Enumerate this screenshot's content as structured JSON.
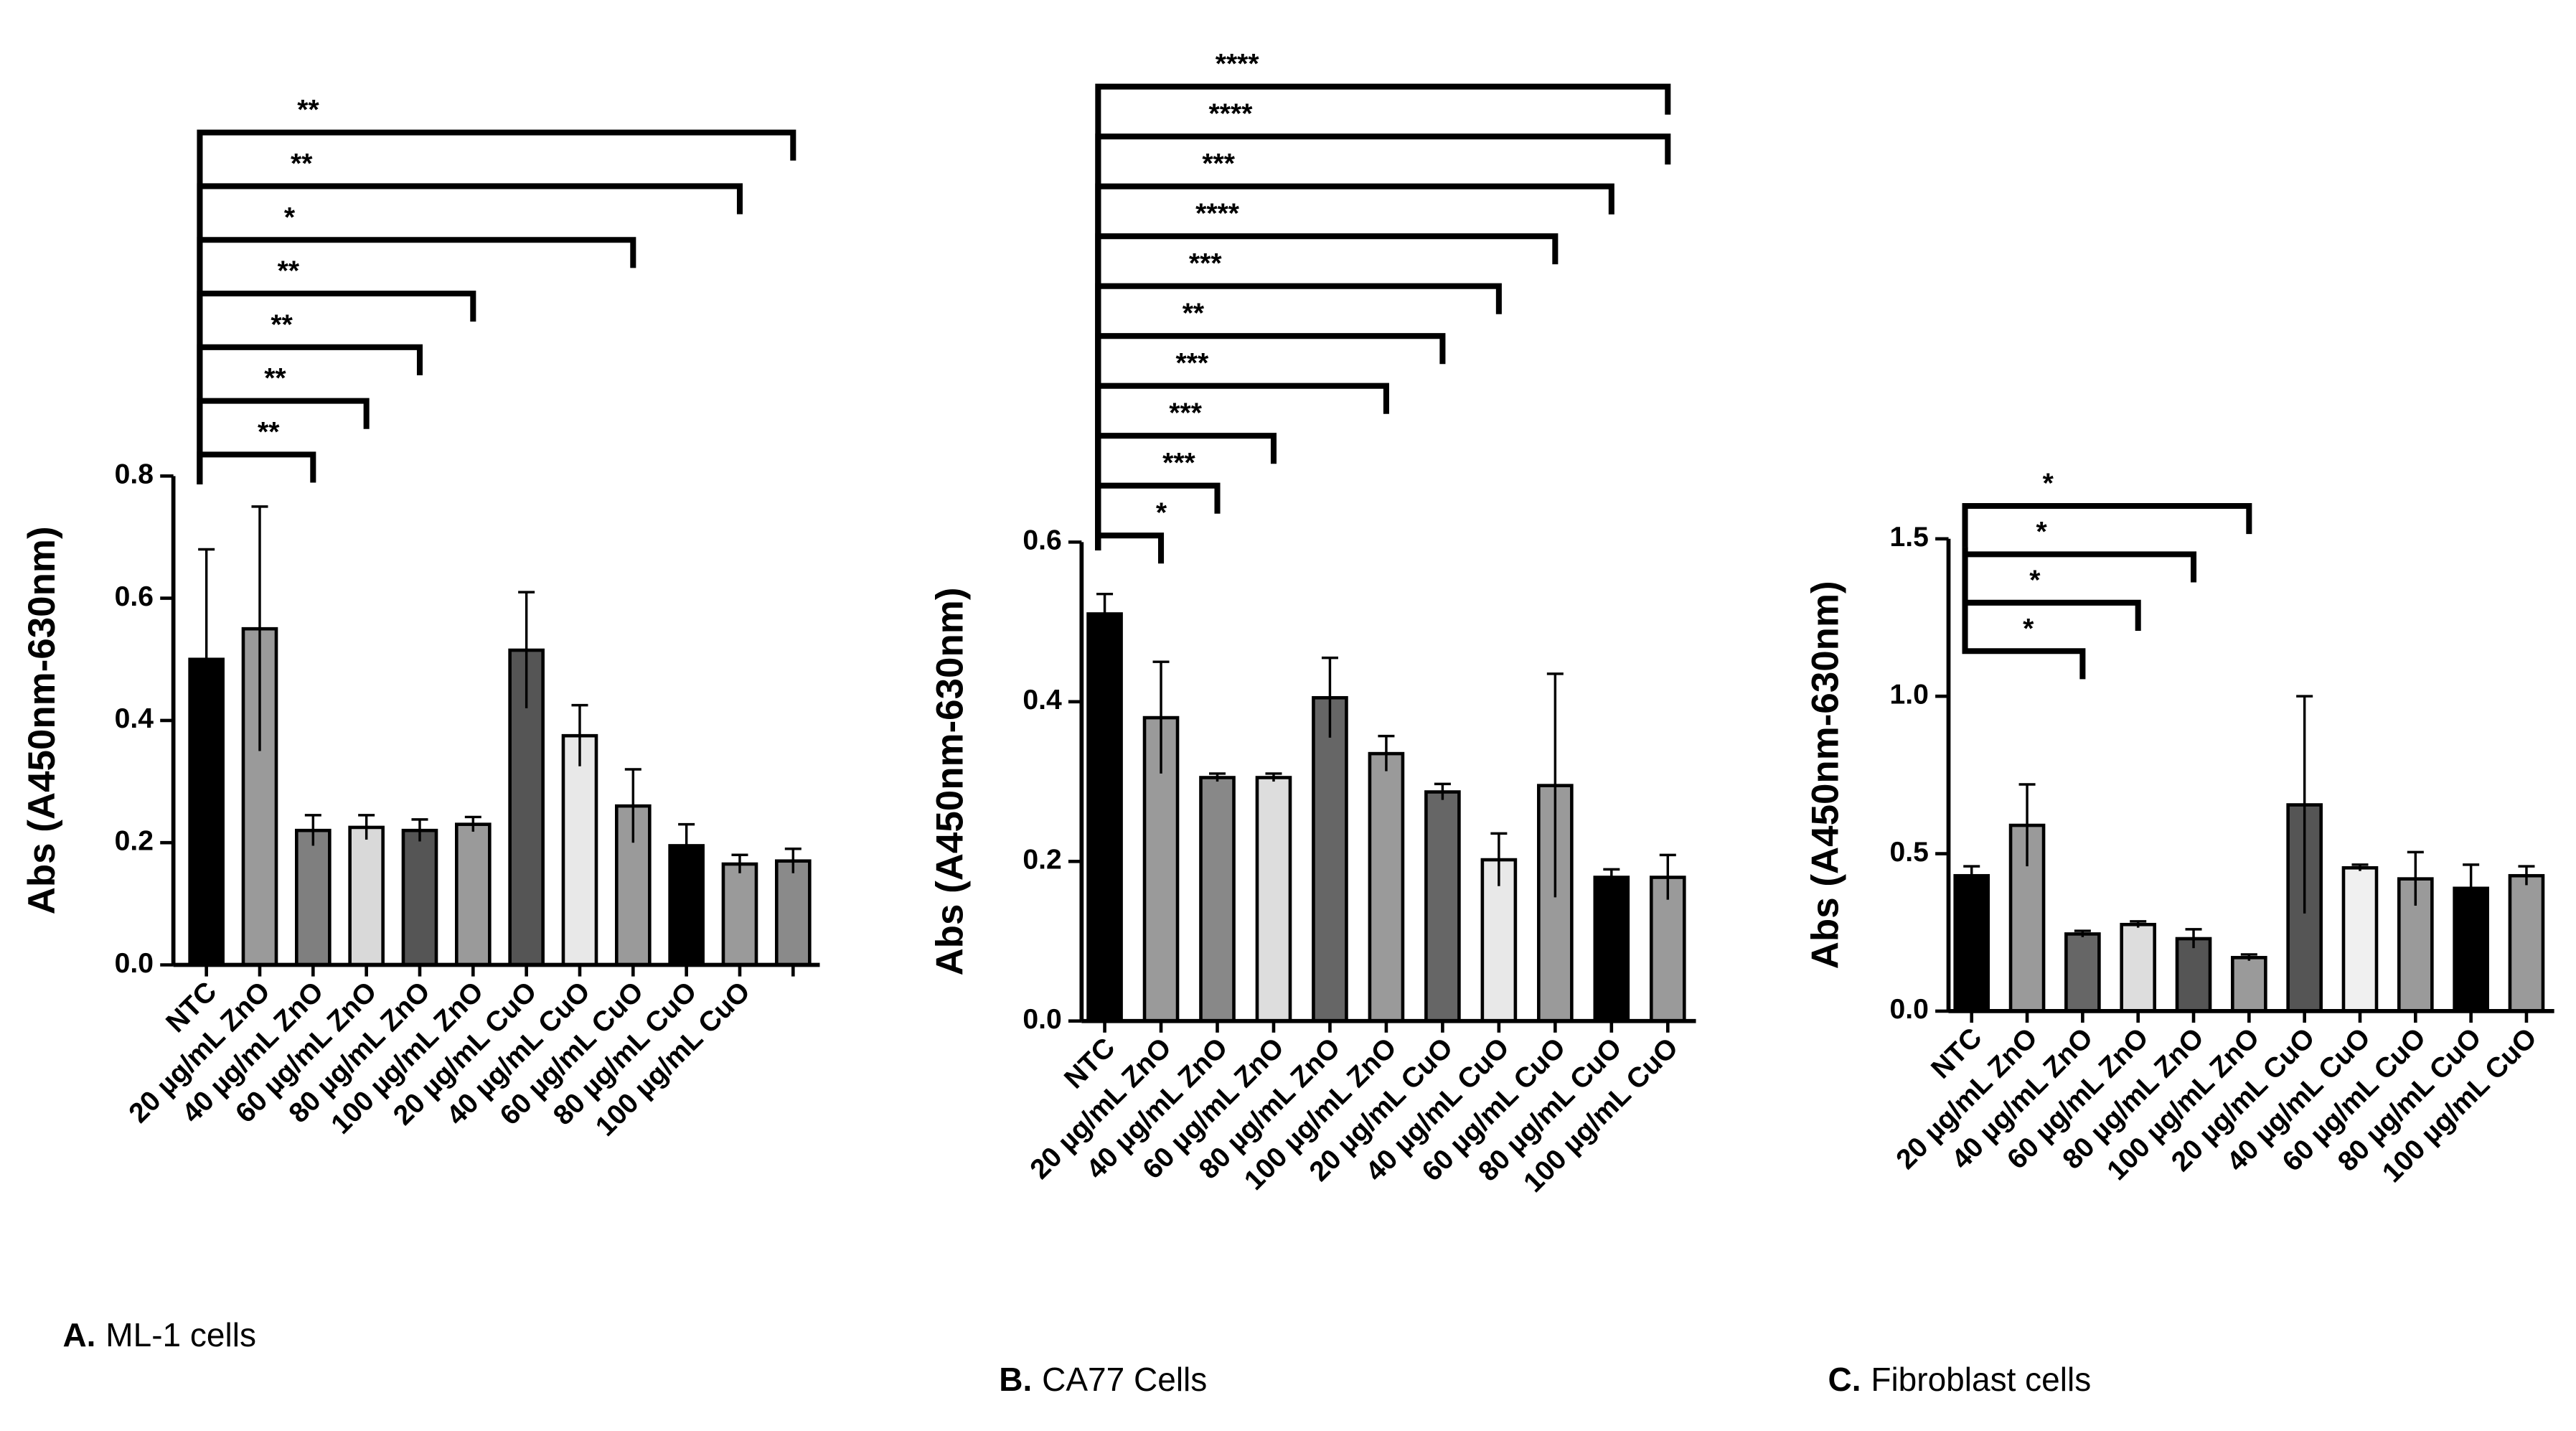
{
  "chart_data": [
    {
      "type": "bar",
      "caption_prefix": "A.",
      "caption": "ML-1 cells",
      "y_label": "Abs (A450nm-630nm)",
      "categories": [
        "NTC",
        "20 µg/mL ZnO",
        "40 µg/mL ZnO",
        "60 µg/mL ZnO",
        "80 µg/mL ZnO",
        "100 µg/mL ZnO",
        "20 µg/mL CuO",
        "40 µg/mL CuO",
        "60 µg/mL CuO",
        "80 µg/mL CuO",
        "100 µg/mL CuO",
        null
      ],
      "values": [
        0.5,
        0.55,
        0.22,
        0.225,
        0.22,
        0.23,
        0.515,
        0.375,
        0.26,
        0.195,
        0.165,
        0.17
      ],
      "errors": [
        0.18,
        0.2,
        0.025,
        0.02,
        0.018,
        0.012,
        0.095,
        0.05,
        0.06,
        0.035,
        0.015,
        0.02
      ],
      "colors": [
        "#000000",
        "#9a9a9a",
        "#7f7f7f",
        "#d9d9d9",
        "#555555",
        "#9a9a9a",
        "#555555",
        "#e8e8e8",
        "#9a9a9a",
        "#000000",
        "#9a9a9a",
        "#8a8a8a"
      ],
      "ylim": [
        0,
        0.8
      ],
      "yticks": [
        {
          "value": 0,
          "label": "0.0"
        },
        0.2,
        0.4,
        0.6,
        0.8
      ],
      "annotations": [
        {
          "from": 0,
          "to": 2,
          "label": "**"
        },
        {
          "from": 0,
          "to": 3,
          "label": "**"
        },
        {
          "from": 0,
          "to": 4,
          "label": "**"
        },
        {
          "from": 0,
          "to": 5,
          "label": "**"
        },
        {
          "from": 0,
          "to": 8,
          "label": "*"
        },
        {
          "from": 0,
          "to": 10,
          "label": "**"
        },
        {
          "from": 0,
          "to": 11,
          "label": "**"
        }
      ]
    },
    {
      "type": "bar",
      "caption_prefix": "B.",
      "caption": "CA77 Cells",
      "y_label": "Abs (A450nm-630nm)",
      "categories": [
        "NTC",
        "20 µg/mL ZnO",
        "40 µg/mL ZnO",
        "60 µg/mL ZnO",
        "80 µg/mL ZnO",
        "100 µg/mL ZnO",
        "20 µg/mL CuO",
        "40 µg/mL CuO",
        "60 µg/mL CuO",
        "80 µg/mL CuO",
        "100 µg/mL CuO"
      ],
      "values": [
        0.51,
        0.38,
        0.305,
        0.305,
        0.405,
        0.335,
        0.287,
        0.202,
        0.295,
        0.18,
        0.18
      ],
      "errors": [
        0.025,
        0.07,
        0.005,
        0.005,
        0.05,
        0.022,
        0.01,
        0.033,
        0.14,
        0.01,
        0.028
      ],
      "colors": [
        "#000000",
        "#9a9a9a",
        "#888888",
        "#dddddd",
        "#666666",
        "#9a9a9a",
        "#666666",
        "#e8e8e8",
        "#9a9a9a",
        "#000000",
        "#9a9a9a"
      ],
      "ylim": [
        0,
        0.6
      ],
      "yticks": [
        {
          "value": 0,
          "label": "0.0"
        },
        0.2,
        0.4,
        0.6
      ],
      "annotations": [
        {
          "from": 0,
          "to": 1,
          "label": "*"
        },
        {
          "from": 0,
          "to": 2,
          "label": "***"
        },
        {
          "from": 0,
          "to": 3,
          "label": "***"
        },
        {
          "from": 0,
          "to": 5,
          "label": "***"
        },
        {
          "from": 0,
          "to": 6,
          "label": "**"
        },
        {
          "from": 0,
          "to": 7,
          "label": "***"
        },
        {
          "from": 0,
          "to": 8,
          "label": "****"
        },
        {
          "from": 0,
          "to": 9,
          "label": "***"
        },
        {
          "from": 0,
          "to": 10,
          "label": "****"
        },
        {
          "from": 0,
          "to": 10,
          "label": "****"
        }
      ]
    },
    {
      "type": "bar",
      "caption_prefix": "C.",
      "caption": "Fibroblast cells",
      "y_label": "Abs (A450nm-630nm)",
      "categories": [
        "NTC",
        "20 µg/mL ZnO",
        "40 µg/mL ZnO",
        "60 µg/mL ZnO",
        "80 µg/mL ZnO",
        "100 µg/mL ZnO",
        "20 µg/mL CuO",
        "40 µg/mL CuO",
        "60 µg/mL CuO",
        "80 µg/mL CuO",
        "100 µg/mL CuO"
      ],
      "values": [
        0.43,
        0.59,
        0.245,
        0.275,
        0.23,
        0.17,
        0.655,
        0.455,
        0.42,
        0.39,
        0.43
      ],
      "errors": [
        0.03,
        0.13,
        0.01,
        0.01,
        0.03,
        0.01,
        0.345,
        0.01,
        0.085,
        0.075,
        0.03
      ],
      "colors": [
        "#000000",
        "#9a9a9a",
        "#666666",
        "#dddddd",
        "#555555",
        "#9a9a9a",
        "#555555",
        "#f0f0f0",
        "#9a9a9a",
        "#000000",
        "#9a9a9a"
      ],
      "ylim": [
        0,
        1.5
      ],
      "yticks": [
        {
          "value": 0,
          "label": "0.0"
        },
        0.5,
        {
          "value": 1,
          "label": "1.0"
        },
        1.5
      ],
      "annotations": [
        {
          "from": 0,
          "to": 2,
          "label": "*"
        },
        {
          "from": 0,
          "to": 3,
          "label": "*"
        },
        {
          "from": 0,
          "to": 4,
          "label": "*"
        },
        {
          "from": 0,
          "to": 5,
          "label": "*"
        }
      ]
    }
  ]
}
